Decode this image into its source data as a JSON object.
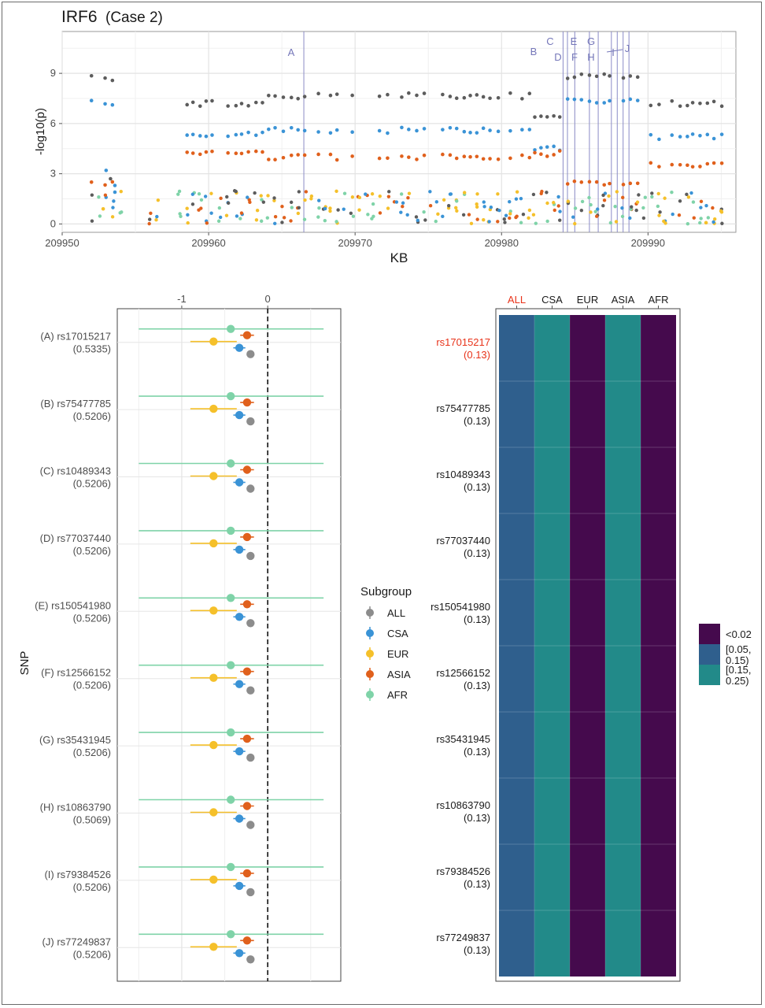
{
  "figure": {
    "title": "IRF6",
    "subtitle": "(Case 2)"
  },
  "colors": {
    "ALL": "#5c5c5c",
    "ALL_point": "#8c8c8c",
    "CSA": "#3a93d6",
    "EUR": "#f5c02a",
    "ASIA": "#e0601c",
    "AFR": "#7fd3a8",
    "line": "#8a8bc7",
    "heat_lt002": "#450a4d",
    "heat_005_015": "#2f5f8d",
    "heat_015_025": "#228a89",
    "highlight": "#e8331a"
  },
  "chart_data": [
    {
      "type": "scatter",
      "name": "manhattan",
      "xlabel": "KB",
      "ylabel": "-log10(p)",
      "xlim": [
        209950,
        209996
      ],
      "ylim": [
        -0.5,
        11.5
      ],
      "xticks": [
        209950,
        209960,
        209970,
        209980,
        209990
      ],
      "yticks": [
        0,
        3,
        6,
        9
      ],
      "grid": true,
      "snp_lines": [
        {
          "label": "A",
          "x": 209966.5
        },
        {
          "label": "B",
          "x": 209984.2
        },
        {
          "label": "C",
          "x": 209984.5
        },
        {
          "label": "D",
          "x": 209985.0
        },
        {
          "label": "E",
          "x": 209986.0
        },
        {
          "label": "F",
          "x": 209986.6
        },
        {
          "label": "G",
          "x": 209987.5
        },
        {
          "label": "H",
          "x": 209987.9
        },
        {
          "label": "I",
          "x": 209988.3
        },
        {
          "label": "J",
          "x": 209988.7
        }
      ]
    },
    {
      "type": "scatter",
      "name": "forest",
      "ylabel": "SNP",
      "xlim": [
        -1.75,
        0.85
      ],
      "xticks": [
        -1,
        0
      ],
      "reference_line": 0,
      "series_order": [
        "ALL",
        "CSA",
        "EUR",
        "ASIA",
        "AFR"
      ],
      "legend": {
        "title": "Subgroup",
        "position": "right"
      },
      "snps": [
        {
          "label": "(A) rs17015217",
          "value": "(0.5335)"
        },
        {
          "label": "(B) rs75477785",
          "value": "(0.5206)"
        },
        {
          "label": "(C) rs10489343",
          "value": "(0.5206)"
        },
        {
          "label": "(D) rs77037440",
          "value": "(0.5206)"
        },
        {
          "label": "(E) rs150541980",
          "value": "(0.5206)"
        },
        {
          "label": "(F) rs12566152",
          "value": "(0.5206)"
        },
        {
          "label": "(G) rs35431945",
          "value": "(0.5206)"
        },
        {
          "label": "(H) rs10863790",
          "value": "(0.5069)"
        },
        {
          "label": "(I) rs79384526",
          "value": "(0.5206)"
        },
        {
          "label": "(J) rs77249837",
          "value": "(0.5206)"
        }
      ],
      "estimates": {
        "ALL": {
          "est": -0.2,
          "lo": -0.2,
          "hi": -0.2
        },
        "CSA": {
          "est": -0.33,
          "lo": -0.4,
          "hi": -0.26
        },
        "EUR": {
          "est": -0.63,
          "lo": -0.9,
          "hi": -0.36
        },
        "ASIA": {
          "est": -0.24,
          "lo": -0.32,
          "hi": -0.16
        },
        "AFR": {
          "est": -0.43,
          "lo": -1.5,
          "hi": 0.65
        }
      }
    },
    {
      "type": "heatmap",
      "name": "heatmap",
      "columns": [
        "ALL",
        "CSA",
        "EUR",
        "ASIA",
        "AFR"
      ],
      "rows": [
        {
          "label": "rs17015217",
          "value": "(0.13)",
          "highlight": true
        },
        {
          "label": "rs75477785",
          "value": "(0.13)"
        },
        {
          "label": "rs10489343",
          "value": "(0.13)"
        },
        {
          "label": "rs77037440",
          "value": "(0.13)"
        },
        {
          "label": "rs150541980",
          "value": "(0.13)"
        },
        {
          "label": "rs12566152",
          "value": "(0.13)"
        },
        {
          "label": "rs35431945",
          "value": "(0.13)"
        },
        {
          "label": "rs10863790",
          "value": "(0.13)"
        },
        {
          "label": "rs79384526",
          "value": "(0.13)"
        },
        {
          "label": "rs77249837",
          "value": "(0.13)"
        }
      ],
      "cell_category_by_column": [
        "[0.05, 0.15)",
        "[0.15, 0.25)",
        "<0.02",
        "[0.15, 0.25)",
        "<0.02"
      ],
      "legend": {
        "position": "right",
        "items": [
          {
            "label": "<0.02",
            "color": "#450a4d"
          },
          {
            "label": "[0.05,",
            "label2": "0.15)",
            "color": "#2f5f8d"
          },
          {
            "label": "[0.15,",
            "label2": "0.25)",
            "color": "#228a89"
          }
        ]
      }
    }
  ]
}
